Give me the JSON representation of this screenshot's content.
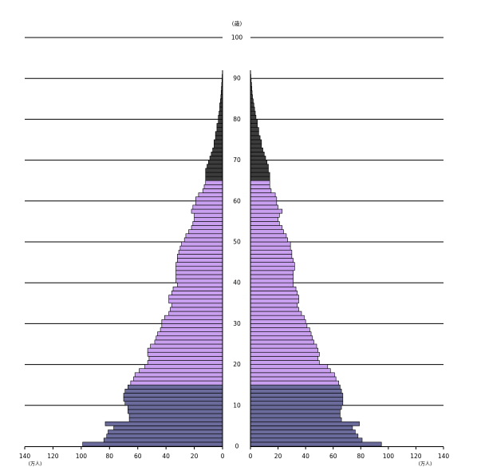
{
  "chart_data": {
    "type": "bar",
    "orientation": "horizontal",
    "layout": "population-pyramid",
    "age_unit_label": "(歳)",
    "x_unit_label": "(万人)",
    "xlim": [
      0,
      140
    ],
    "x_ticks": [
      0,
      20,
      40,
      60,
      80,
      100,
      120,
      140
    ],
    "x_tick_labels": [
      "0",
      "20",
      "40",
      "60",
      "80",
      "100",
      "120",
      "140"
    ],
    "age_ticks": [
      0,
      10,
      20,
      30,
      40,
      50,
      60,
      70,
      80,
      90,
      100
    ],
    "age_tick_labels": [
      "0",
      "10",
      "20",
      "30",
      "40",
      "50",
      "60",
      "70",
      "80",
      "90",
      "100"
    ],
    "age_group_colors": {
      "young": "#6b6b9b",
      "working": "#c9a0f0",
      "old": "#3c3c3c"
    },
    "age_group_bounds": {
      "working_start": 15,
      "old_start": 65
    },
    "grid": {
      "horizontal_every": 10
    },
    "ages": [
      0,
      1,
      2,
      3,
      4,
      5,
      6,
      7,
      8,
      9,
      10,
      11,
      12,
      13,
      14,
      15,
      16,
      17,
      18,
      19,
      20,
      21,
      22,
      23,
      24,
      25,
      26,
      27,
      28,
      29,
      30,
      31,
      32,
      33,
      34,
      35,
      36,
      37,
      38,
      39,
      40,
      41,
      42,
      43,
      44,
      45,
      46,
      47,
      48,
      49,
      50,
      51,
      52,
      53,
      54,
      55,
      56,
      57,
      58,
      59,
      60,
      61,
      62,
      63,
      64,
      65,
      66,
      67,
      68,
      69,
      70,
      71,
      72,
      73,
      74,
      75,
      76,
      77,
      78,
      79,
      80,
      81,
      82,
      83,
      84,
      85,
      86,
      87,
      88,
      89,
      90
    ],
    "series": [
      {
        "side": "left",
        "values": [
          99,
          84,
          82,
          81,
          77,
          83,
          66,
          66,
          67,
          67,
          69,
          70,
          70,
          69,
          67,
          65,
          63,
          62,
          59,
          55,
          53,
          52,
          53,
          53,
          51,
          48,
          47,
          46,
          44,
          43,
          43,
          41,
          38,
          37,
          36,
          38,
          38,
          36,
          35,
          32,
          33,
          33,
          33,
          33,
          33,
          32,
          32,
          31,
          30,
          29,
          27,
          26,
          24,
          22,
          21,
          20,
          20,
          22,
          21,
          19,
          19,
          17,
          14,
          13,
          12,
          12,
          12,
          12,
          11,
          10,
          9,
          8,
          7,
          6,
          6,
          5,
          5,
          4,
          4,
          3,
          3,
          2.5,
          2,
          2,
          1.5,
          1.2,
          1,
          0.8,
          0.6,
          0.4,
          0.3
        ]
      },
      {
        "side": "right",
        "values": [
          95,
          81,
          78,
          76,
          74,
          79,
          66,
          65,
          65,
          66,
          67,
          67,
          67,
          66,
          65,
          64,
          62,
          61,
          58,
          56,
          50,
          49,
          50,
          49,
          48,
          46,
          45,
          44,
          43,
          41,
          40,
          39,
          37,
          35,
          34,
          35,
          35,
          34,
          33,
          31,
          31,
          31,
          31,
          32,
          32,
          31,
          30,
          30,
          29,
          29,
          27,
          26,
          24,
          23,
          21,
          20,
          21,
          23,
          20,
          19,
          19,
          18,
          15,
          14,
          14,
          14,
          14,
          13,
          13,
          12,
          11,
          10,
          9,
          8,
          8,
          7,
          6,
          6,
          5,
          5,
          4,
          3.5,
          3,
          2.5,
          2,
          1.5,
          1.2,
          1,
          0.8,
          0.5,
          0.3
        ]
      }
    ]
  }
}
